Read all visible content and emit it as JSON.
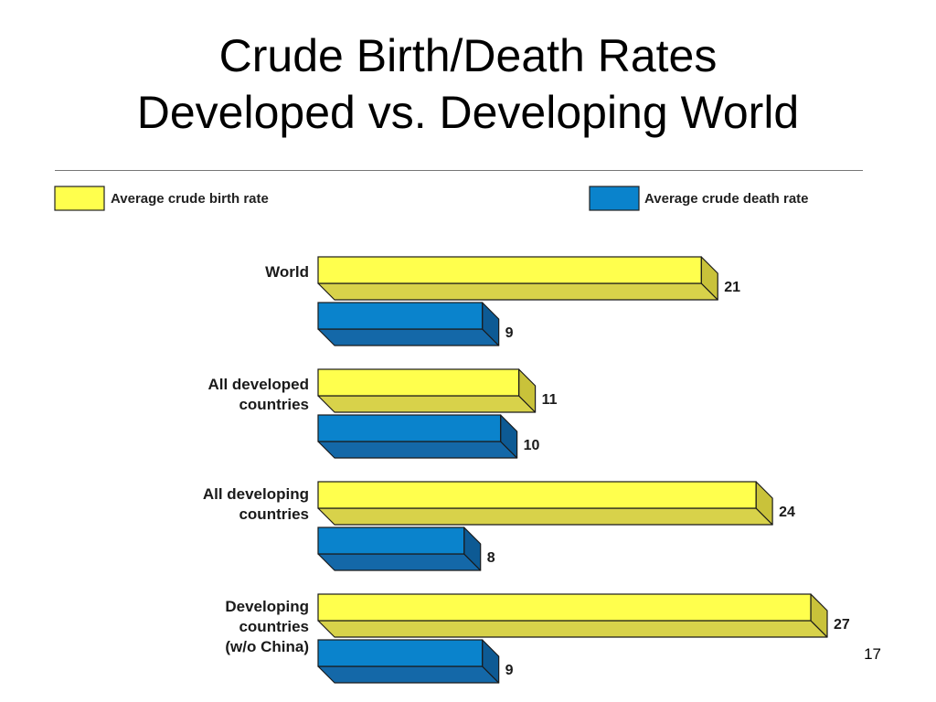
{
  "slide": {
    "title_line1": "Crude Birth/Death Rates",
    "title_line2": "Developed vs. Developing World",
    "slide_number": "17"
  },
  "chart_data": {
    "type": "bar",
    "orientation": "horizontal",
    "style": "3d",
    "grid": false,
    "legend_position": "top",
    "categories": [
      [
        "World"
      ],
      [
        "All developed",
        "countries"
      ],
      [
        "All developing",
        "countries"
      ],
      [
        "Developing",
        "countries",
        "(w/o China)"
      ]
    ],
    "series": [
      {
        "name": "Average crude birth rate",
        "color": "#ffff4d",
        "top_color": "#d8d24a",
        "side_color": "#c9c23a",
        "values": [
          21,
          11,
          24,
          27
        ]
      },
      {
        "name": "Average crude death rate",
        "color": "#0a83cc",
        "top_color": "#1468a8",
        "side_color": "#0d5a94",
        "values": [
          9,
          10,
          8,
          9
        ]
      }
    ],
    "xlim": [
      0,
      27
    ]
  }
}
